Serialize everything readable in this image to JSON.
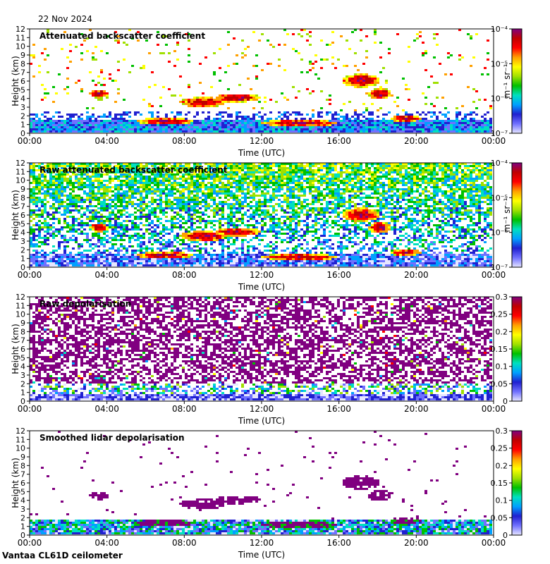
{
  "date": "22 Nov 2024",
  "footer": "Vantaa CL61D ceilometer",
  "colormap": [
    "#e6e6ff",
    "#7070ff",
    "#2020d0",
    "#00a0ff",
    "#00e0c0",
    "#00c000",
    "#a0e000",
    "#ffff00",
    "#ffa000",
    "#ff0000",
    "#c00000",
    "#800080"
  ],
  "chart_data": [
    {
      "type": "heatmap",
      "title": "Attenuated backscatter coefficient",
      "xlabel": "Time (UTC)",
      "ylabel": "Height (km)",
      "x_ticks": [
        "00:00",
        "04:00",
        "08:00",
        "12:00",
        "16:00",
        "20:00",
        "00:00"
      ],
      "y_ticks": [
        "0",
        "1",
        "2",
        "3",
        "4",
        "5",
        "6",
        "7",
        "8",
        "9",
        "10",
        "11",
        "12"
      ],
      "ylim": [
        0,
        12
      ],
      "colorbar_scale": "log",
      "colorbar_ticks": [
        "10⁻⁷",
        "10⁻⁶",
        "10⁻⁵",
        "10⁻⁴"
      ],
      "colorbar_label": "m⁻¹ sr⁻¹"
    },
    {
      "type": "heatmap",
      "title": "Raw attenuated backscatter coefficient",
      "xlabel": "Time (UTC)",
      "ylabel": "Height (km)",
      "x_ticks": [
        "00:00",
        "04:00",
        "08:00",
        "12:00",
        "16:00",
        "20:00",
        "00:00"
      ],
      "y_ticks": [
        "0",
        "1",
        "2",
        "3",
        "4",
        "5",
        "6",
        "7",
        "8",
        "9",
        "10",
        "11",
        "12"
      ],
      "ylim": [
        0,
        12
      ],
      "colorbar_scale": "log",
      "colorbar_ticks": [
        "10⁻⁷",
        "10⁻⁶",
        "10⁻⁵",
        "10⁻⁴"
      ],
      "colorbar_label": "m⁻¹ sr⁻¹"
    },
    {
      "type": "heatmap",
      "title": "Raw depolarisation",
      "xlabel": "Time (UTC)",
      "ylabel": "Height (km)",
      "x_ticks": [
        "00:00",
        "04:00",
        "08:00",
        "12:00",
        "16:00",
        "20:00",
        "00:00"
      ],
      "y_ticks": [
        "0",
        "1",
        "2",
        "3",
        "4",
        "5",
        "6",
        "7",
        "8",
        "9",
        "10",
        "11",
        "12"
      ],
      "ylim": [
        0,
        12
      ],
      "colorbar_scale": "linear",
      "colorbar_ticks": [
        "0",
        "0.05",
        "0.1",
        "0.15",
        "0.2",
        "0.25",
        "0.3"
      ],
      "colorbar_label": ""
    },
    {
      "type": "heatmap",
      "title": "Smoothed lidar depolarisation",
      "xlabel": "Time (UTC)",
      "ylabel": "Height (km)",
      "x_ticks": [
        "00:00",
        "04:00",
        "08:00",
        "12:00",
        "16:00",
        "20:00",
        "00:00"
      ],
      "y_ticks": [
        "0",
        "1",
        "2",
        "3",
        "4",
        "5",
        "6",
        "7",
        "8",
        "9",
        "10",
        "11",
        "12"
      ],
      "ylim": [
        0,
        12
      ],
      "colorbar_scale": "linear",
      "colorbar_ticks": [
        "0",
        "0.05",
        "0.1",
        "0.15",
        "0.2",
        "0.25",
        "0.3"
      ],
      "colorbar_label": ""
    }
  ]
}
